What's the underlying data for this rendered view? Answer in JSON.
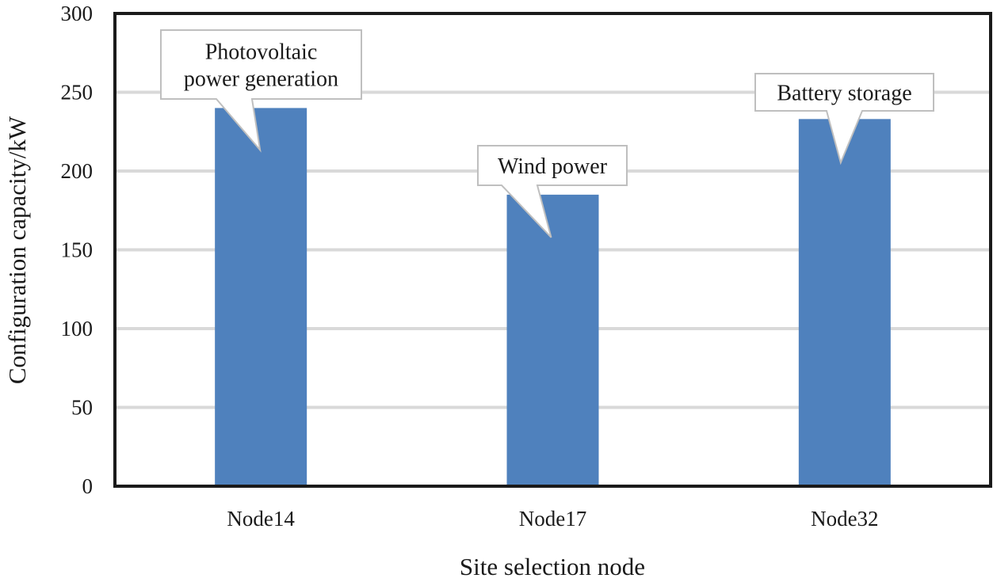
{
  "chart_data": {
    "type": "bar",
    "categories": [
      "Node14",
      "Node17",
      "Node32"
    ],
    "values": [
      240,
      185,
      233
    ],
    "annotations": [
      [
        "Photovoltaic",
        "power generation"
      ],
      [
        "Wind power"
      ],
      [
        "Battery storage"
      ]
    ],
    "xlabel": "Site selection node",
    "ylabel": "Configuration capacity/kW",
    "ylim": [
      0,
      300
    ],
    "yticks": [
      0,
      50,
      100,
      150,
      200,
      250,
      300
    ],
    "grid": true,
    "legend": "none",
    "colors": {
      "bar": "#4f81bd",
      "grid": "#d9d9d9",
      "frame": "#1a1a1a"
    }
  }
}
